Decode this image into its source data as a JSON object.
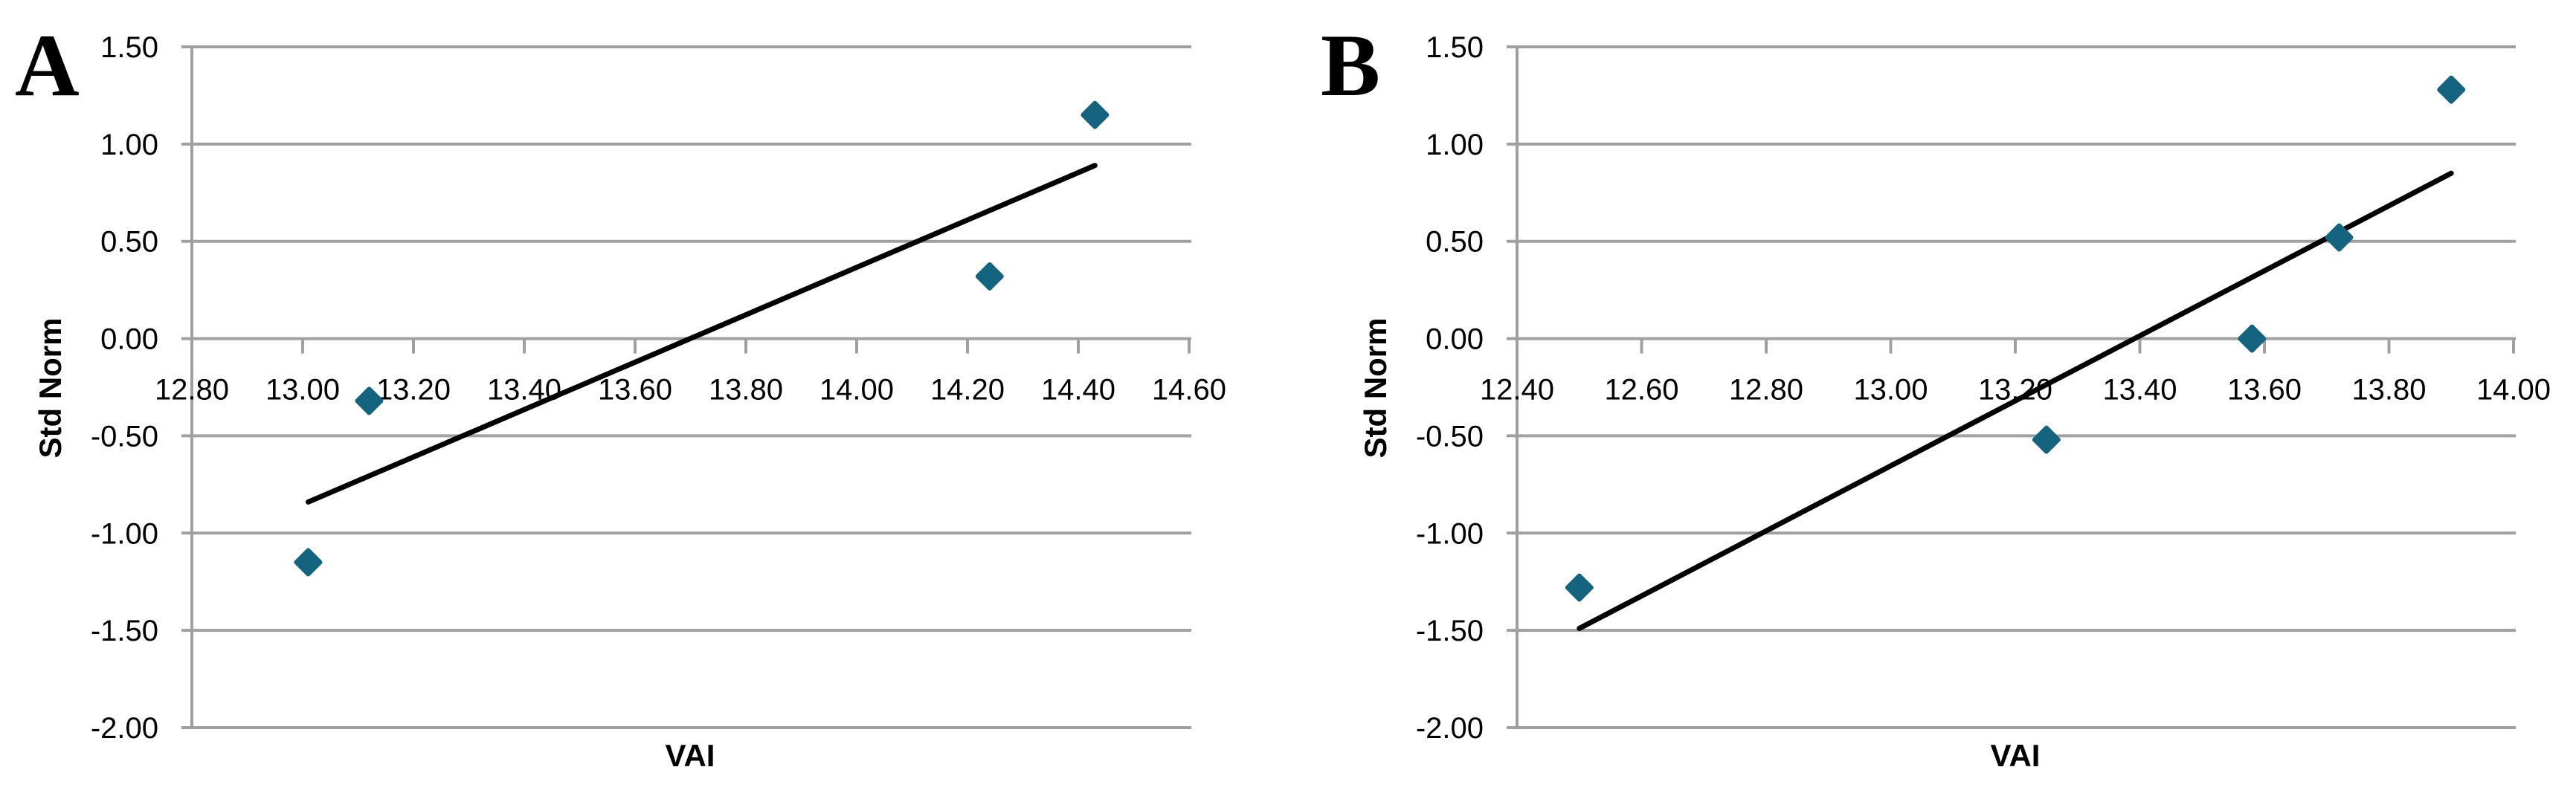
{
  "figure_title": "",
  "chart_data": [
    {
      "type": "scatter",
      "panel_label": "A",
      "title": "",
      "xlabel": "VAI",
      "ylabel": "Std Norm",
      "xlim": [
        12.8,
        14.6
      ],
      "ylim": [
        -2.0,
        1.5
      ],
      "x_ticks": [
        12.8,
        13.0,
        13.2,
        13.4,
        13.6,
        13.8,
        14.0,
        14.2,
        14.4,
        14.6
      ],
      "x_tick_labels": [
        "12.80",
        "13.00",
        "13.20",
        "13.40",
        "13.60",
        "13.80",
        "14.00",
        "14.20",
        "14.40",
        "14.60"
      ],
      "y_ticks": [
        1.5,
        1.0,
        0.5,
        0.0,
        -0.5,
        -1.0,
        -1.5,
        -2.0
      ],
      "y_tick_labels": [
        "1.50",
        "1.00",
        "0.50",
        "0.00",
        "-0.50",
        "-1.00",
        "-1.50",
        "-2.00"
      ],
      "grid": "horizontal-gridlines-on",
      "legend": "none",
      "marker": "diamond",
      "points": [
        {
          "x": 13.01,
          "y": -1.15
        },
        {
          "x": 13.12,
          "y": -0.32
        },
        {
          "x": 14.24,
          "y": 0.32
        },
        {
          "x": 14.43,
          "y": 1.15
        }
      ],
      "trendline": {
        "x1": 13.01,
        "y1": -0.84,
        "x2": 14.43,
        "y2": 0.89
      },
      "colors": {
        "marker": "#14637F",
        "trendline": "#000000",
        "grid": "#A0A0A0",
        "text": "#000000"
      }
    },
    {
      "type": "scatter",
      "panel_label": "B",
      "title": "",
      "xlabel": "VAI",
      "ylabel": "Std Norm",
      "xlim": [
        12.4,
        14.0
      ],
      "ylim": [
        -2.0,
        1.5
      ],
      "x_ticks": [
        12.4,
        12.6,
        12.8,
        13.0,
        13.2,
        13.4,
        13.6,
        13.8,
        14.0
      ],
      "x_tick_labels": [
        "12.40",
        "12.60",
        "12.80",
        "13.00",
        "13.20",
        "13.40",
        "13.60",
        "13.80",
        "14.00"
      ],
      "y_ticks": [
        1.5,
        1.0,
        0.5,
        0.0,
        -0.5,
        -1.0,
        -1.5,
        -2.0
      ],
      "y_tick_labels": [
        "1.50",
        "1.00",
        "0.50",
        "0.00",
        "-0.50",
        "-1.00",
        "-1.50",
        "-2.00"
      ],
      "grid": "horizontal-gridlines-on",
      "legend": "none",
      "marker": "diamond",
      "points": [
        {
          "x": 12.5,
          "y": -1.28
        },
        {
          "x": 13.25,
          "y": -0.52
        },
        {
          "x": 13.58,
          "y": 0.0
        },
        {
          "x": 13.72,
          "y": 0.52
        },
        {
          "x": 13.9,
          "y": 1.28
        }
      ],
      "trendline": {
        "x1": 12.5,
        "y1": -1.49,
        "x2": 13.9,
        "y2": 0.85
      },
      "colors": {
        "marker": "#14637F",
        "trendline": "#000000",
        "grid": "#A0A0A0",
        "text": "#000000"
      }
    }
  ]
}
